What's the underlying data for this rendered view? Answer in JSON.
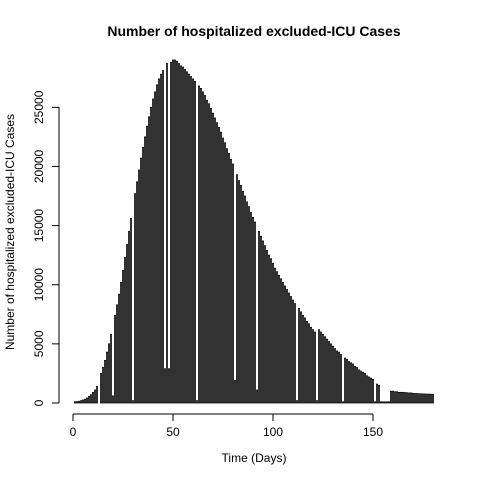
{
  "chart_data": {
    "type": "bar",
    "title": "Number of hospitalized excluded-ICU Cases",
    "xlabel": "Time (Days)",
    "ylabel": "Number of hospitalized excluded-ICU Cases",
    "xlim": [
      0,
      180
    ],
    "ylim": [
      0,
      29000
    ],
    "xticks": [
      0,
      50,
      100,
      150
    ],
    "yticks": [
      0,
      5000,
      10000,
      15000,
      20000,
      25000
    ],
    "grid": false,
    "x": [
      1,
      2,
      3,
      4,
      5,
      6,
      7,
      8,
      9,
      10,
      11,
      12,
      13,
      14,
      15,
      16,
      17,
      18,
      19,
      20,
      21,
      22,
      23,
      24,
      25,
      26,
      27,
      28,
      29,
      30,
      31,
      32,
      33,
      34,
      35,
      36,
      37,
      38,
      39,
      40,
      41,
      42,
      43,
      44,
      45,
      46,
      47,
      48,
      49,
      50,
      51,
      52,
      53,
      54,
      55,
      56,
      57,
      58,
      59,
      60,
      61,
      62,
      63,
      64,
      65,
      66,
      67,
      68,
      69,
      70,
      71,
      72,
      73,
      74,
      75,
      76,
      77,
      78,
      79,
      80,
      81,
      82,
      83,
      84,
      85,
      86,
      87,
      88,
      89,
      90,
      91,
      92,
      93,
      94,
      95,
      96,
      97,
      98,
      99,
      100,
      101,
      102,
      103,
      104,
      105,
      106,
      107,
      108,
      109,
      110,
      111,
      112,
      113,
      114,
      115,
      116,
      117,
      118,
      119,
      120,
      121,
      122,
      123,
      124,
      125,
      126,
      127,
      128,
      129,
      130,
      131,
      132,
      133,
      134,
      135,
      136,
      137,
      138,
      139,
      140,
      141,
      142,
      143,
      144,
      145,
      146,
      147,
      148,
      149,
      150,
      151,
      152,
      153,
      154,
      155,
      156,
      157,
      158,
      159,
      160,
      161,
      162,
      163,
      164,
      165,
      166,
      167,
      168,
      169,
      170,
      171,
      172,
      173,
      174,
      175,
      176,
      177,
      178,
      179,
      180
    ],
    "values": [
      100,
      120,
      150,
      200,
      250,
      320,
      420,
      550,
      700,
      900,
      1100,
      1400,
      0,
      2500,
      3000,
      3600,
      4300,
      5000,
      5800,
      600,
      7400,
      8300,
      9200,
      10200,
      11200,
      12300,
      13400,
      14500,
      15600,
      200,
      17700,
      18700,
      19700,
      20700,
      21600,
      22500,
      23400,
      24200,
      25000,
      25700,
      26300,
      26900,
      27400,
      27800,
      28100,
      2900,
      28700,
      2900,
      28800,
      29000,
      29000,
      28900,
      28700,
      28500,
      28400,
      28200,
      28000,
      27800,
      27600,
      27400,
      27200,
      200,
      26800,
      26600,
      26300,
      26000,
      25600,
      25300,
      24900,
      24500,
      24100,
      23700,
      23300,
      22900,
      22400,
      22000,
      21500,
      21100,
      20600,
      20200,
      1900,
      19300,
      18800,
      18400,
      17900,
      17500,
      17000,
      16600,
      16100,
      15700,
      15300,
      1100,
      14500,
      14100,
      13700,
      13300,
      12900,
      12500,
      12200,
      11800,
      11400,
      11100,
      10800,
      10500,
      10200,
      9900,
      9600,
      9300,
      9000,
      8700,
      8400,
      200,
      8000,
      7700,
      7400,
      7200,
      6900,
      6700,
      6400,
      6200,
      6000,
      200,
      6200,
      6000,
      5800,
      5600,
      5400,
      5200,
      5000,
      4800,
      4600,
      4400,
      4300,
      4100,
      100,
      3800,
      3700,
      3500,
      3400,
      3300,
      3100,
      3000,
      2800,
      2700,
      2600,
      2500,
      2300,
      2200,
      2100,
      2000,
      100,
      1600,
      1500,
      100,
      100,
      100,
      100,
      100,
      1000,
      1000,
      950,
      950,
      900,
      900,
      900,
      880,
      870,
      850,
      850,
      820,
      800,
      800,
      780,
      780,
      770,
      760,
      750,
      750,
      740,
      730
    ]
  }
}
